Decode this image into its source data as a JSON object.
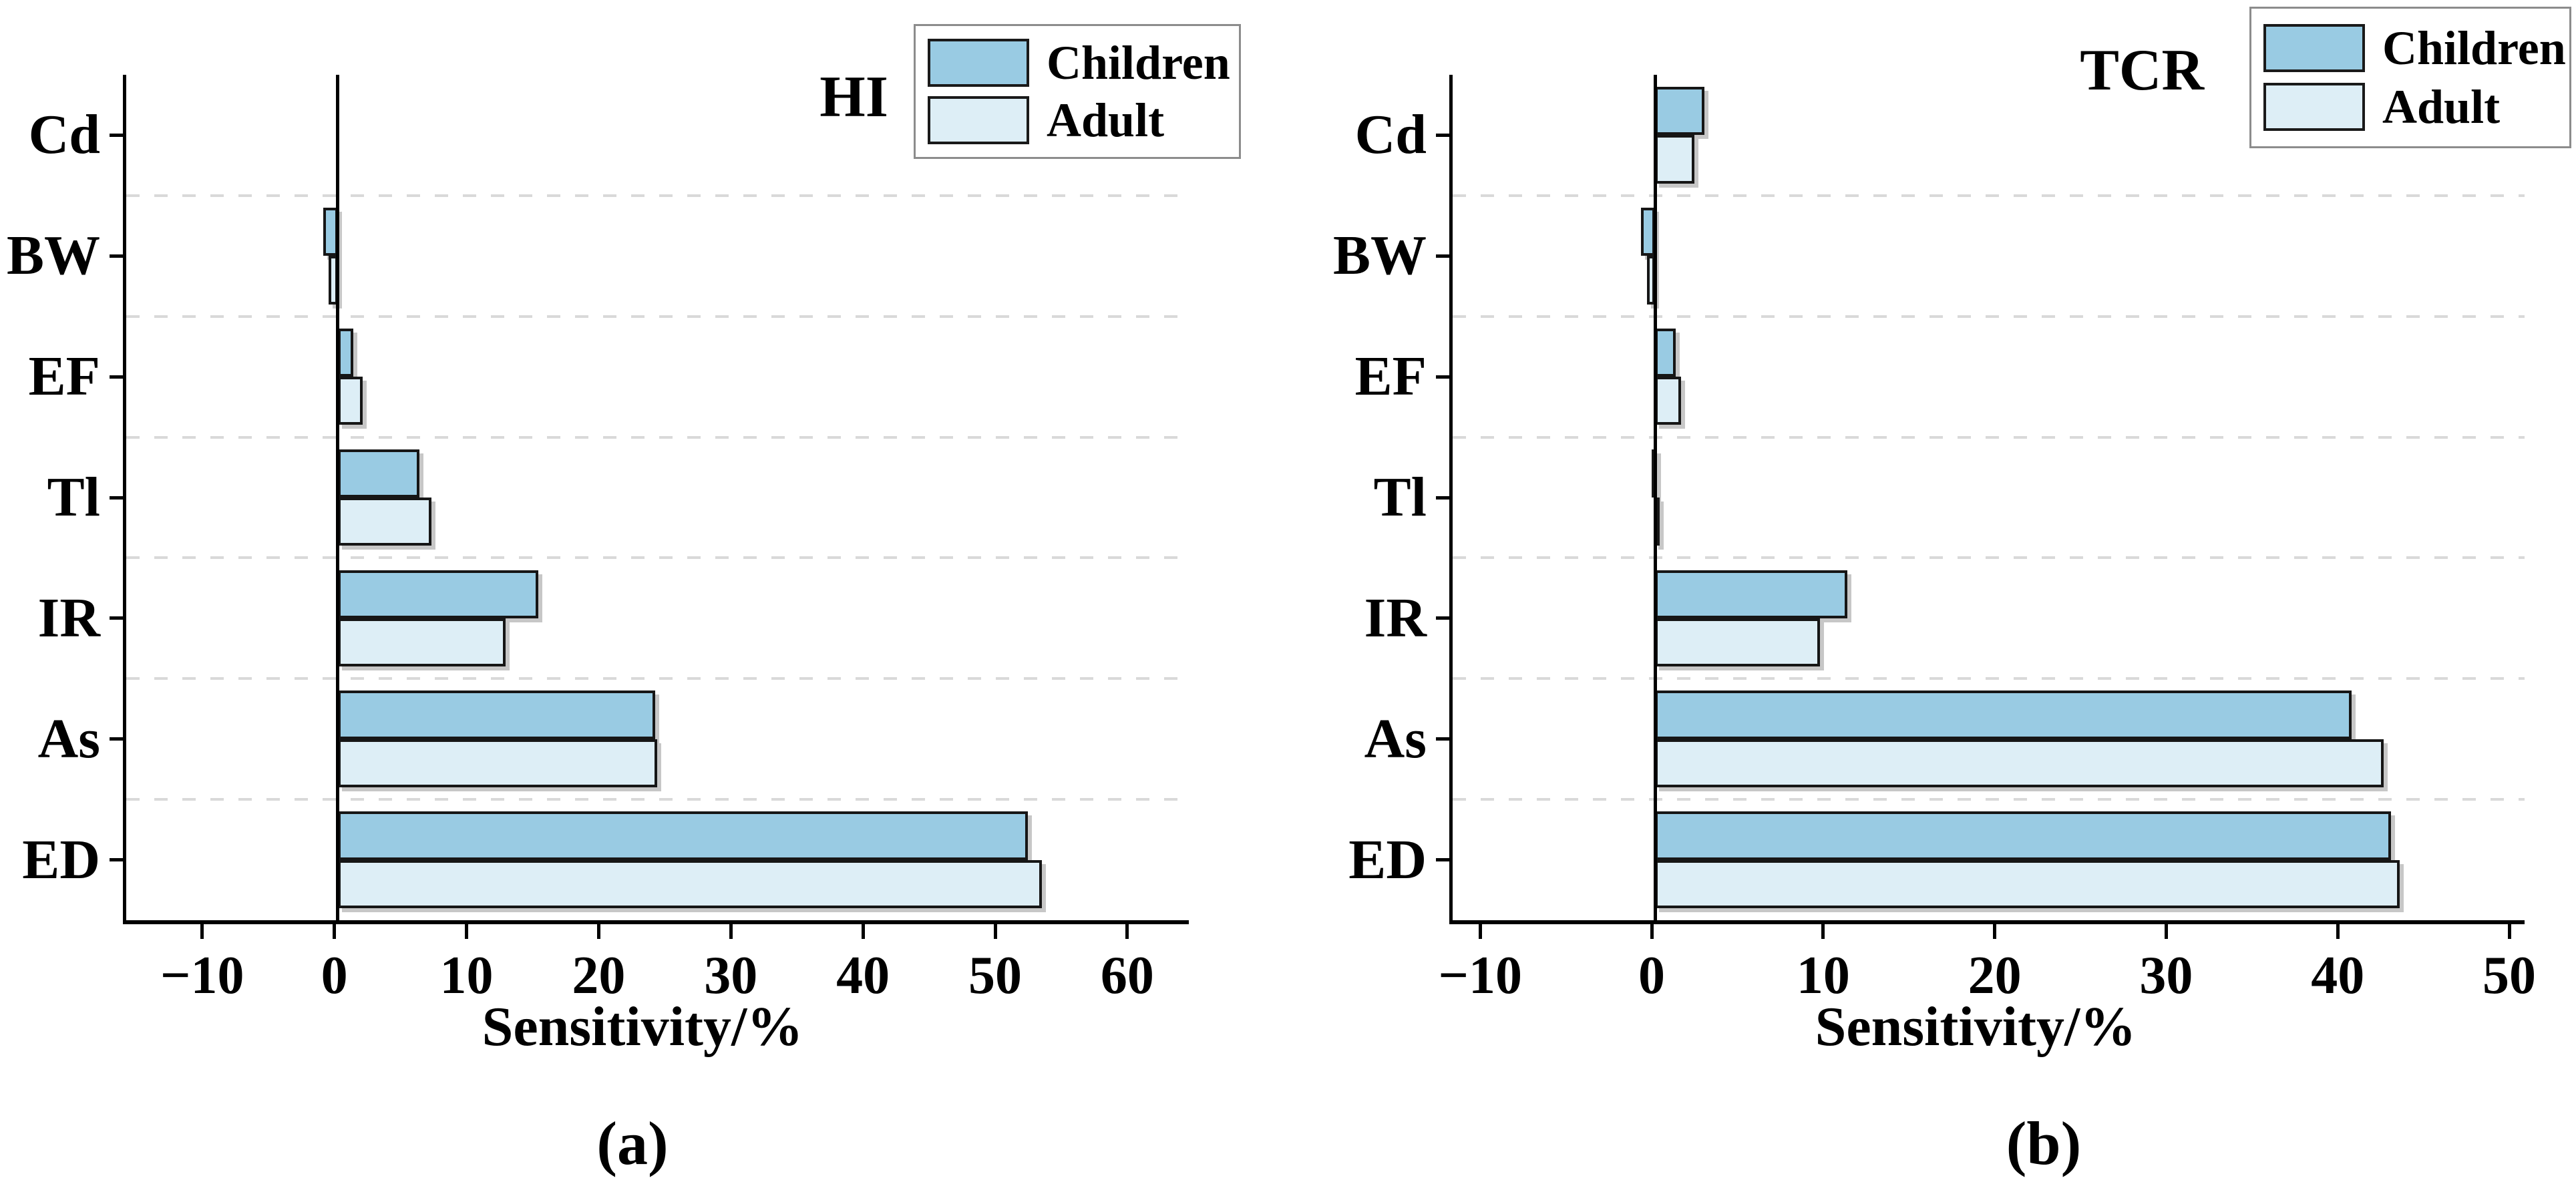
{
  "figure": {
    "background": "#ffffff",
    "text_color": "#000000",
    "gridline_color": "#d9d9d9",
    "bar_border_color": "#161616",
    "legend_border_color": "#8c8c8c"
  },
  "chart_data": [
    {
      "type": "bar",
      "orientation": "horizontal",
      "panel_label": "HI",
      "caption": "(a)",
      "xlabel": "Sensitivity/%",
      "categories": [
        "Cd",
        "BW",
        "EF",
        "Tl",
        "IR",
        "As",
        "ED"
      ],
      "series": [
        {
          "name": "Children",
          "color": "#99cbe3",
          "values": [
            0,
            -1.1,
            1.2,
            6.2,
            15.2,
            24.0,
            52.2
          ]
        },
        {
          "name": "Adult",
          "color": "#ddeef6",
          "values": [
            0,
            -0.7,
            1.9,
            7.1,
            12.7,
            24.2,
            53.3
          ]
        }
      ],
      "xlim": [
        -16,
        64.4
      ],
      "xticks": [
        -10,
        0,
        10,
        20,
        30,
        40,
        50,
        60
      ],
      "grid": "dashed horizontal lines between category rows",
      "legend_position": "top-right"
    },
    {
      "type": "bar",
      "orientation": "horizontal",
      "panel_label": "TCR",
      "caption": "(b)",
      "xlabel": "Sensitivity/%",
      "categories": [
        "Cd",
        "BW",
        "EF",
        "Tl",
        "IR",
        "As",
        "ED"
      ],
      "series": [
        {
          "name": "Children",
          "color": "#99cbe3",
          "values": [
            2.9,
            -0.8,
            1.2,
            -0.2,
            11.2,
            40.6,
            42.9
          ]
        },
        {
          "name": "Adult",
          "color": "#ddeef6",
          "values": [
            2.3,
            -0.45,
            1.5,
            -0.05,
            9.6,
            42.5,
            43.4
          ]
        }
      ],
      "xlim": [
        -11.8,
        50.7
      ],
      "xticks": [
        -10,
        0,
        10,
        20,
        30,
        40,
        50
      ],
      "grid": "dashed horizontal lines between category rows",
      "legend_position": "top-right"
    }
  ]
}
